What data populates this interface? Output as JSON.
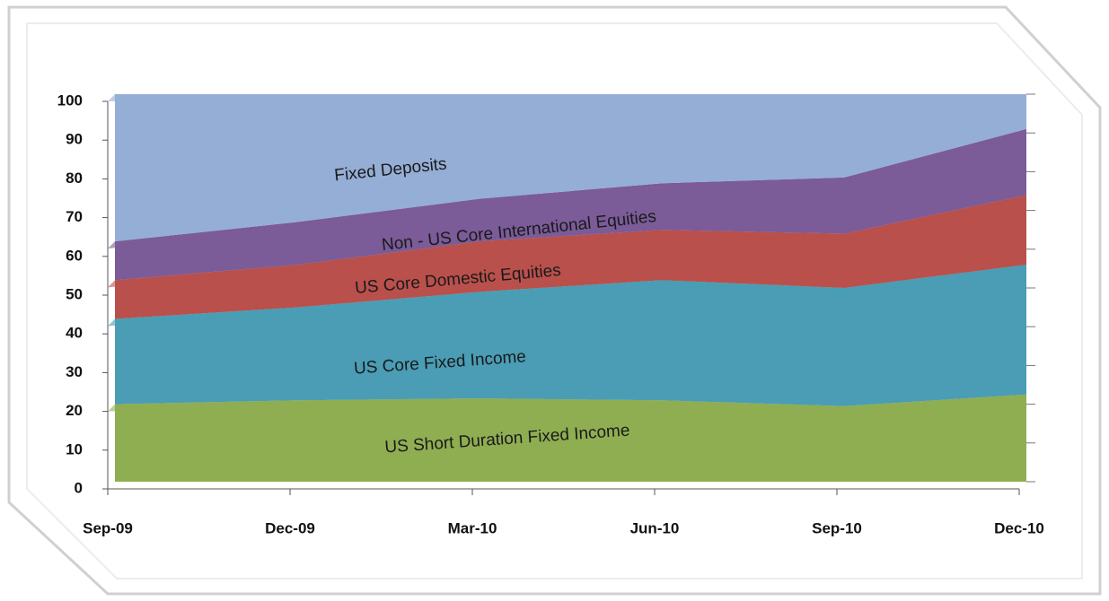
{
  "chart_data": {
    "type": "stacked-area",
    "categories": [
      "Sep-09",
      "Dec-09",
      "Mar-10",
      "Jun-10",
      "Sep-10",
      "Dec-10"
    ],
    "series": [
      {
        "name": "US Short Duration Fixed Income",
        "color": "#8fae52",
        "values": [
          20,
          21,
          21.5,
          21,
          19.5,
          22.5
        ]
      },
      {
        "name": "US Core Fixed Income",
        "color": "#4a9db5",
        "values": [
          22,
          24,
          27.5,
          31,
          30.5,
          33.5
        ]
      },
      {
        "name": "US Core Domestic Equities",
        "color": "#b9504c",
        "values": [
          10,
          11,
          13,
          13,
          14,
          18
        ]
      },
      {
        "name": "Non - US Core International  Equities",
        "color": "#7b5b98",
        "values": [
          10,
          11,
          11,
          12,
          14.5,
          17
        ]
      },
      {
        "name": "Fixed Deposits",
        "color": "#95aed6",
        "values": [
          38,
          33,
          27,
          23,
          21.5,
          9
        ]
      }
    ],
    "ylim": [
      0,
      100
    ],
    "yticks": [
      0,
      10,
      20,
      30,
      40,
      50,
      60,
      70,
      80,
      90,
      100
    ]
  }
}
